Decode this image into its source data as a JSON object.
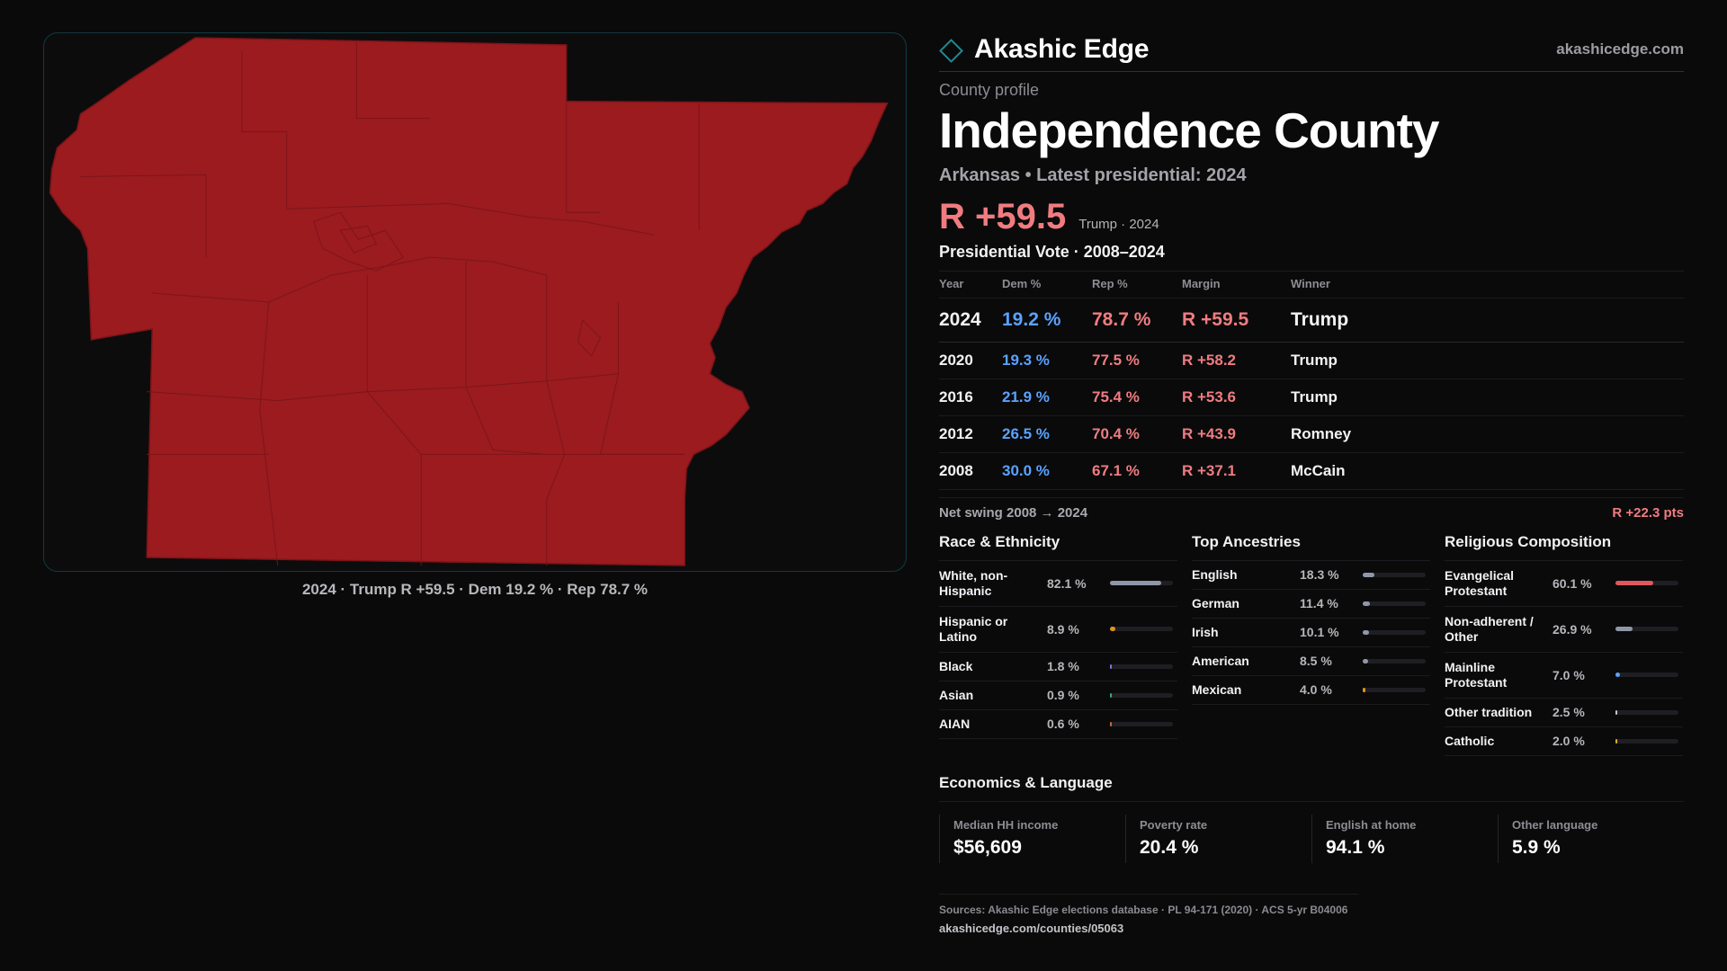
{
  "brand": {
    "name": "Akashic Edge",
    "url": "akashicedge.com",
    "accent": "#1f8a93"
  },
  "county": {
    "kicker": "County profile",
    "title": "Independence County",
    "subtitle": "Arkansas • Latest presidential: 2024",
    "headline_margin": "R +59.5",
    "headline_note": "Trump · 2024"
  },
  "map": {
    "fill_color": "#9b1b1f",
    "caption": "2024 · Trump R +59.5 · Dem 19.2 % · Rep 78.7 %"
  },
  "vote": {
    "title": "Presidential Vote · 2008–2024",
    "headers": [
      "Year",
      "Dem %",
      "Rep %",
      "Margin",
      "Winner"
    ],
    "rows": [
      {
        "year": "2024",
        "dem": "19.2 %",
        "rep": "78.7 %",
        "margin": "R +59.5",
        "winner": "Trump"
      },
      {
        "year": "2020",
        "dem": "19.3 %",
        "rep": "77.5 %",
        "margin": "R +58.2",
        "winner": "Trump"
      },
      {
        "year": "2016",
        "dem": "21.9 %",
        "rep": "75.4 %",
        "margin": "R +53.6",
        "winner": "Trump"
      },
      {
        "year": "2012",
        "dem": "26.5 %",
        "rep": "70.4 %",
        "margin": "R +43.9",
        "winner": "Romney"
      },
      {
        "year": "2008",
        "dem": "30.0 %",
        "rep": "67.1 %",
        "margin": "R +37.1",
        "winner": "McCain"
      }
    ],
    "swing_label": "Net swing 2008 → 2024",
    "swing_value": "R +22.3 pts"
  },
  "demographics": {
    "race": {
      "title": "Race & Ethnicity",
      "items": [
        {
          "label": "White, non-Hispanic",
          "value": "82.1 %",
          "pct": 82.1,
          "color": "#8f97a8"
        },
        {
          "label": "Hispanic or Latino",
          "value": "8.9 %",
          "pct": 8.9,
          "color": "#e0921c"
        },
        {
          "label": "Black",
          "value": "1.8 %",
          "pct": 1.8,
          "color": "#8a6be0"
        },
        {
          "label": "Asian",
          "value": "0.9 %",
          "pct": 0.9,
          "color": "#3aa67a"
        },
        {
          "label": "AIAN",
          "value": "0.6 %",
          "pct": 0.6,
          "color": "#c46a3a"
        }
      ]
    },
    "ancestry": {
      "title": "Top Ancestries",
      "items": [
        {
          "label": "English",
          "value": "18.3 %",
          "pct": 18.3,
          "color": "#8f97a8"
        },
        {
          "label": "German",
          "value": "11.4 %",
          "pct": 11.4,
          "color": "#8f97a8"
        },
        {
          "label": "Irish",
          "value": "10.1 %",
          "pct": 10.1,
          "color": "#8f97a8"
        },
        {
          "label": "American",
          "value": "8.5 %",
          "pct": 8.5,
          "color": "#8f97a8"
        },
        {
          "label": "Mexican",
          "value": "4.0 %",
          "pct": 4.0,
          "color": "#e0921c"
        }
      ]
    },
    "religion": {
      "title": "Religious Composition",
      "items": [
        {
          "label": "Evangelical Protestant",
          "value": "60.1 %",
          "pct": 60.1,
          "color": "#e0575d"
        },
        {
          "label": "Non-adherent / Other",
          "value": "26.9 %",
          "pct": 26.9,
          "color": "#8f97a8"
        },
        {
          "label": "Mainline Protestant",
          "value": "7.0 %",
          "pct": 7.0,
          "color": "#5aa2ff"
        },
        {
          "label": "Other tradition",
          "value": "2.5 %",
          "pct": 2.5,
          "color": "#c8c8cc"
        },
        {
          "label": "Catholic",
          "value": "2.0 %",
          "pct": 2.0,
          "color": "#d6b432"
        }
      ]
    }
  },
  "economics": {
    "title": "Economics & Language",
    "cards": [
      {
        "label": "Median HH income",
        "value": "$56,609"
      },
      {
        "label": "Poverty rate",
        "value": "20.4 %"
      },
      {
        "label": "English at home",
        "value": "94.1 %"
      },
      {
        "label": "Other language",
        "value": "5.9 %"
      }
    ]
  },
  "sources": {
    "line": "Sources: Akashic Edge elections database · PL 94-171 (2020) · ACS 5-yr B04006",
    "url": "akashicedge.com/counties/05063"
  }
}
